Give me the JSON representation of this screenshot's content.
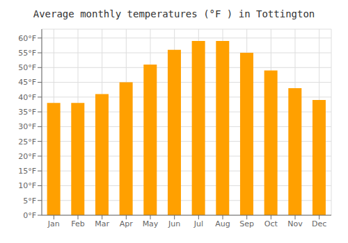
{
  "chart_data": {
    "type": "bar",
    "title": "Average monthly temperatures (°F ) in Tottington",
    "categories": [
      "Jan",
      "Feb",
      "Mar",
      "Apr",
      "May",
      "Jun",
      "Jul",
      "Aug",
      "Sep",
      "Oct",
      "Nov",
      "Dec"
    ],
    "values": [
      38,
      38,
      41,
      45,
      51,
      56,
      59,
      59,
      55,
      49,
      43,
      39
    ],
    "color": "#FFA000",
    "ylim": [
      0,
      63
    ],
    "yticks": [
      {
        "value": 0,
        "label": "0°F"
      },
      {
        "value": 5,
        "label": "5°F"
      },
      {
        "value": 10,
        "label": "10°F"
      },
      {
        "value": 15,
        "label": "15°F"
      },
      {
        "value": 20,
        "label": "20°F"
      },
      {
        "value": 25,
        "label": "25°F"
      },
      {
        "value": 30,
        "label": "30°F"
      },
      {
        "value": 35,
        "label": "35°F"
      },
      {
        "value": 40,
        "label": "40°F"
      },
      {
        "value": 45,
        "label": "45°F"
      },
      {
        "value": 50,
        "label": "50°F"
      },
      {
        "value": 55,
        "label": "55°F"
      },
      {
        "value": 60,
        "label": "60°F"
      }
    ],
    "grid": true
  }
}
